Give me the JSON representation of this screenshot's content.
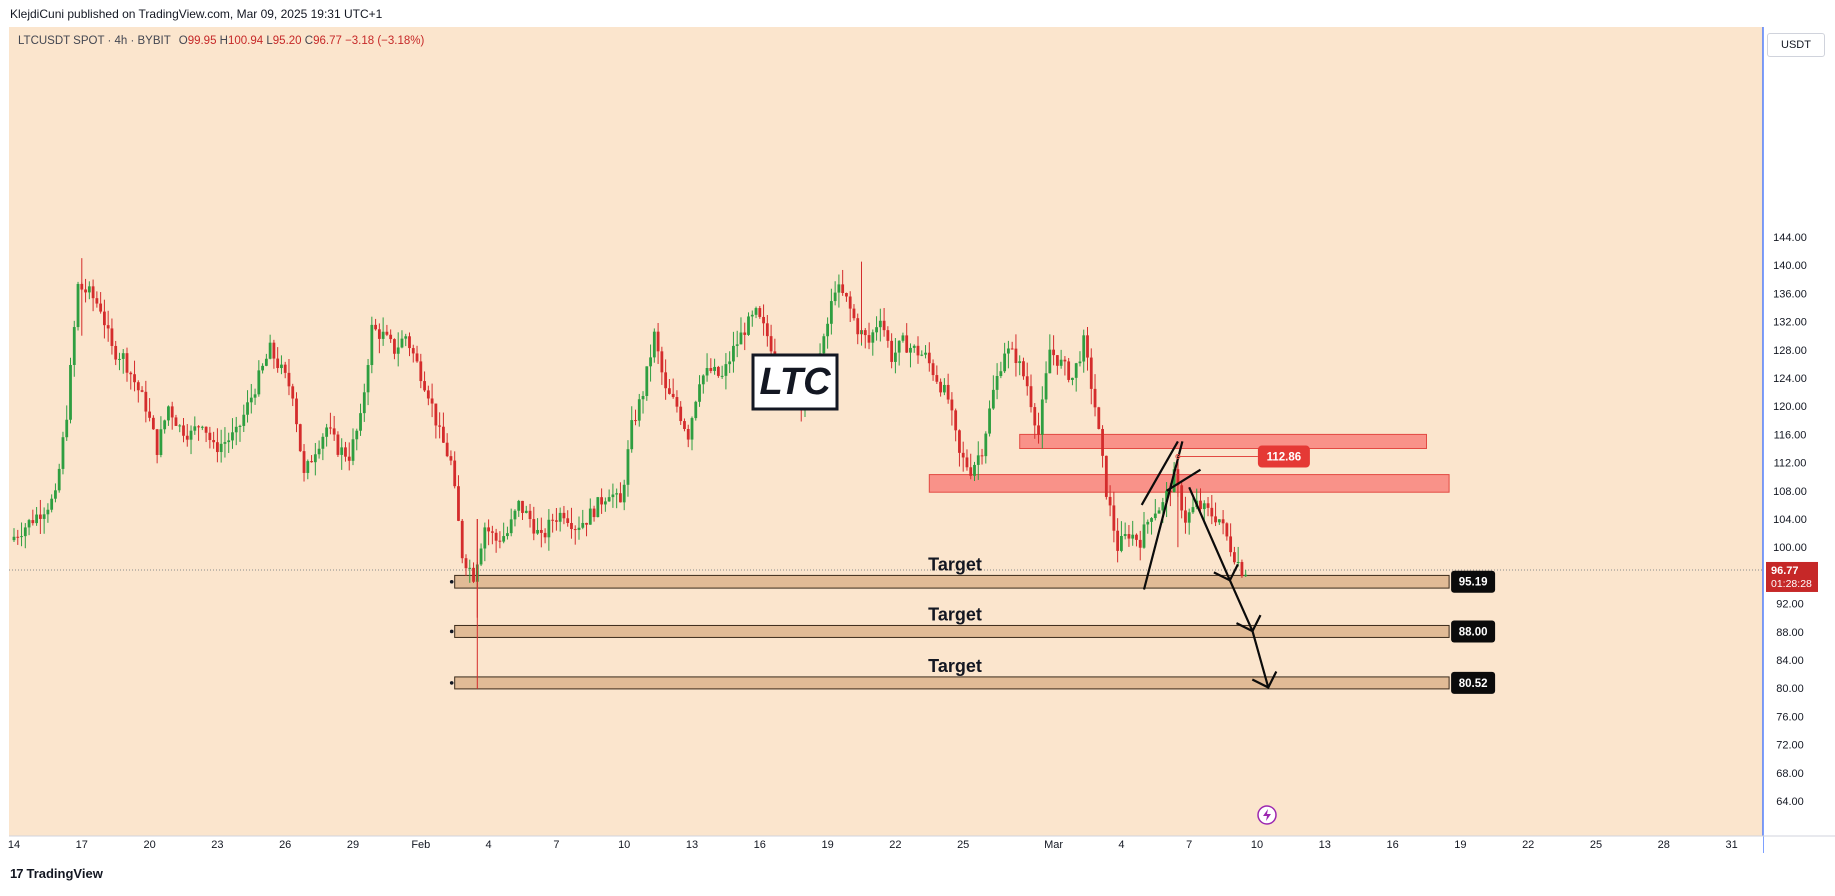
{
  "header": {
    "publisher_line": "KlejdiCuni published on TradingView.com, Mar 09, 2025 19:31 UTC+1"
  },
  "legend": {
    "symbol": "LTCUSDT SPOT · 4h · BYBIT",
    "o_label": "O",
    "o": "99.95",
    "h_label": "H",
    "h": "100.94",
    "l_label": "L",
    "l": "95.20",
    "c_label": "C",
    "c": "96.77",
    "change": "−3.18 (−3.18%)"
  },
  "currency_badge": "USDT",
  "footer": {
    "brand": "TradingView",
    "mark": "17"
  },
  "colors": {
    "background": "#fbe5cd",
    "up": "#2e9e40",
    "down": "#d42c2c",
    "zone_red_fill": "#f8847d",
    "zone_red_stroke": "#e24a43",
    "target_fill": "#dcb48c",
    "axis_line": "#2962ff"
  },
  "chart_data": {
    "type": "candlestick",
    "title": "LTC",
    "ylim": [
      60,
      148
    ],
    "y_ticks": [
      64,
      68,
      72,
      76,
      80,
      84,
      88,
      92,
      96,
      100,
      104,
      108,
      112,
      116,
      120,
      124,
      128,
      132,
      136,
      140,
      144
    ],
    "x_ticks": [
      {
        "label": "14",
        "day": 0
      },
      {
        "label": "17",
        "day": 3
      },
      {
        "label": "20",
        "day": 6
      },
      {
        "label": "23",
        "day": 9
      },
      {
        "label": "26",
        "day": 12
      },
      {
        "label": "29",
        "day": 15
      },
      {
        "label": "Feb",
        "day": 18
      },
      {
        "label": "4",
        "day": 21
      },
      {
        "label": "7",
        "day": 24
      },
      {
        "label": "10",
        "day": 27
      },
      {
        "label": "13",
        "day": 30
      },
      {
        "label": "16",
        "day": 33
      },
      {
        "label": "19",
        "day": 36
      },
      {
        "label": "22",
        "day": 39
      },
      {
        "label": "25",
        "day": 42
      },
      {
        "label": "Mar",
        "day": 46
      },
      {
        "label": "4",
        "day": 49
      },
      {
        "label": "7",
        "day": 52
      },
      {
        "label": "10",
        "day": 55
      },
      {
        "label": "13",
        "day": 58
      },
      {
        "label": "16",
        "day": 61
      },
      {
        "label": "19",
        "day": 64
      },
      {
        "label": "22",
        "day": 67
      },
      {
        "label": "25",
        "day": 70
      },
      {
        "label": "28",
        "day": 73
      },
      {
        "label": "31",
        "day": 76
      }
    ],
    "price_path": [
      [
        0,
        101
      ],
      [
        1,
        104
      ],
      [
        2,
        107
      ],
      [
        2.5,
        119
      ],
      [
        3,
        137
      ],
      [
        3.5,
        136
      ],
      [
        4,
        134
      ],
      [
        4.5,
        128
      ],
      [
        5,
        127
      ],
      [
        6,
        120
      ],
      [
        6.5,
        114
      ],
      [
        7,
        120
      ],
      [
        7.5,
        117
      ],
      [
        8,
        116
      ],
      [
        8.5,
        118
      ],
      [
        9,
        114
      ],
      [
        10,
        116
      ],
      [
        10.5,
        120
      ],
      [
        11,
        124
      ],
      [
        11.5,
        128
      ],
      [
        12,
        125
      ],
      [
        12.5,
        122
      ],
      [
        13,
        110
      ],
      [
        13.5,
        114
      ],
      [
        14,
        117
      ],
      [
        14.5,
        114
      ],
      [
        15,
        113
      ],
      [
        15.5,
        118
      ],
      [
        16,
        131
      ],
      [
        16.5,
        130
      ],
      [
        17,
        128
      ],
      [
        17.5,
        130
      ],
      [
        18,
        126
      ],
      [
        18.5,
        122
      ],
      [
        19,
        116
      ],
      [
        19.5,
        112
      ],
      [
        20,
        99
      ],
      [
        20.5,
        96
      ],
      [
        21,
        103
      ],
      [
        21.5,
        101
      ],
      [
        22,
        102
      ],
      [
        22.5,
        106
      ],
      [
        23,
        104
      ],
      [
        23.5,
        101
      ],
      [
        24,
        104
      ],
      [
        24.5,
        105
      ],
      [
        25,
        103
      ],
      [
        25.5,
        104
      ],
      [
        26,
        106
      ],
      [
        26.5,
        108
      ],
      [
        27,
        106
      ],
      [
        27.5,
        117
      ],
      [
        28,
        122
      ],
      [
        28.5,
        130
      ],
      [
        29,
        122
      ],
      [
        29.5,
        120
      ],
      [
        30,
        116
      ],
      [
        30.5,
        124
      ],
      [
        31,
        125
      ],
      [
        31.5,
        124
      ],
      [
        32,
        128
      ],
      [
        32.5,
        131
      ],
      [
        33,
        133
      ],
      [
        33.5,
        130
      ],
      [
        34,
        126
      ],
      [
        34.5,
        124
      ],
      [
        35,
        121
      ],
      [
        35.5,
        124
      ],
      [
        36,
        129
      ],
      [
        36.5,
        137
      ],
      [
        37,
        135
      ],
      [
        37.5,
        131
      ],
      [
        38,
        129
      ],
      [
        38.5,
        133
      ],
      [
        39,
        127
      ],
      [
        39.5,
        129
      ],
      [
        40,
        128
      ],
      [
        40.5,
        127
      ],
      [
        41,
        124
      ],
      [
        41.5,
        121
      ],
      [
        42,
        113
      ],
      [
        42.5,
        111
      ],
      [
        43,
        114
      ],
      [
        43.5,
        122
      ],
      [
        44,
        128
      ],
      [
        44.5,
        127
      ],
      [
        45,
        123
      ],
      [
        45.5,
        116
      ],
      [
        46,
        128
      ],
      [
        46.5,
        126
      ],
      [
        47,
        124
      ],
      [
        47.5,
        129
      ],
      [
        48,
        120
      ],
      [
        48.5,
        108
      ],
      [
        49,
        100
      ],
      [
        49.5,
        102
      ],
      [
        50,
        101
      ],
      [
        50.5,
        105
      ],
      [
        51,
        106
      ],
      [
        51.5,
        110
      ],
      [
        52,
        104
      ],
      [
        52.5,
        106
      ],
      [
        53,
        105
      ],
      [
        53.5,
        104
      ],
      [
        54,
        100
      ],
      [
        54.5,
        96.77
      ]
    ],
    "wick_extremes": [
      {
        "day": 3,
        "high": 141.0,
        "low": 130.0
      },
      {
        "day": 20.5,
        "high": 104.0,
        "low": 90.0
      },
      {
        "day": 37.5,
        "high": 140.5,
        "low": 129.0
      },
      {
        "day": 51.5,
        "high": 113.0,
        "low": 100.0
      }
    ],
    "last_price": "96.77",
    "countdown": "01:28:28",
    "resistance_zones": [
      {
        "y_from": 114.0,
        "y_to": 116.0,
        "x_from_day": 44.5,
        "x_to_day": 62.5
      },
      {
        "y_from": 107.8,
        "y_to": 110.3,
        "x_from_day": 40.5,
        "x_to_day": 63.5
      }
    ],
    "marker": {
      "label": "112.86",
      "value": 112.86,
      "day": 51.5
    },
    "targets": [
      {
        "label": "Target",
        "value": 95.19,
        "value_label": "95.19",
        "y_from": 94.2,
        "y_to": 96.0,
        "x_from_day": 19.5,
        "x_to_day": 63.5
      },
      {
        "label": "Target",
        "value": 88.0,
        "value_label": "88.00",
        "y_from": 87.2,
        "y_to": 88.9,
        "x_from_day": 19.5,
        "x_to_day": 63.5
      },
      {
        "label": "Target",
        "value": 80.52,
        "value_label": "80.52",
        "y_from": 79.9,
        "y_to": 81.6,
        "x_from_day": 19.5,
        "x_to_day": 63.5
      }
    ],
    "drawn_path": [
      [
        50,
        94
      ],
      [
        51.7,
        115
      ],
      [
        52,
        108
      ],
      [
        53.3,
        94.5
      ],
      [
        55.5,
        80
      ],
      [
        56,
        82.5
      ]
    ],
    "drawn_path_2": [
      [
        49.9,
        106
      ],
      [
        51.5,
        115
      ]
    ],
    "drawn_path_3": [
      [
        51,
        108
      ],
      [
        52.5,
        111
      ]
    ],
    "arrow_heads": [
      {
        "day": 53.8,
        "value": 95.3
      },
      {
        "day": 54.8,
        "value": 88.1
      },
      {
        "day": 55.5,
        "value": 80.1
      }
    ]
  }
}
